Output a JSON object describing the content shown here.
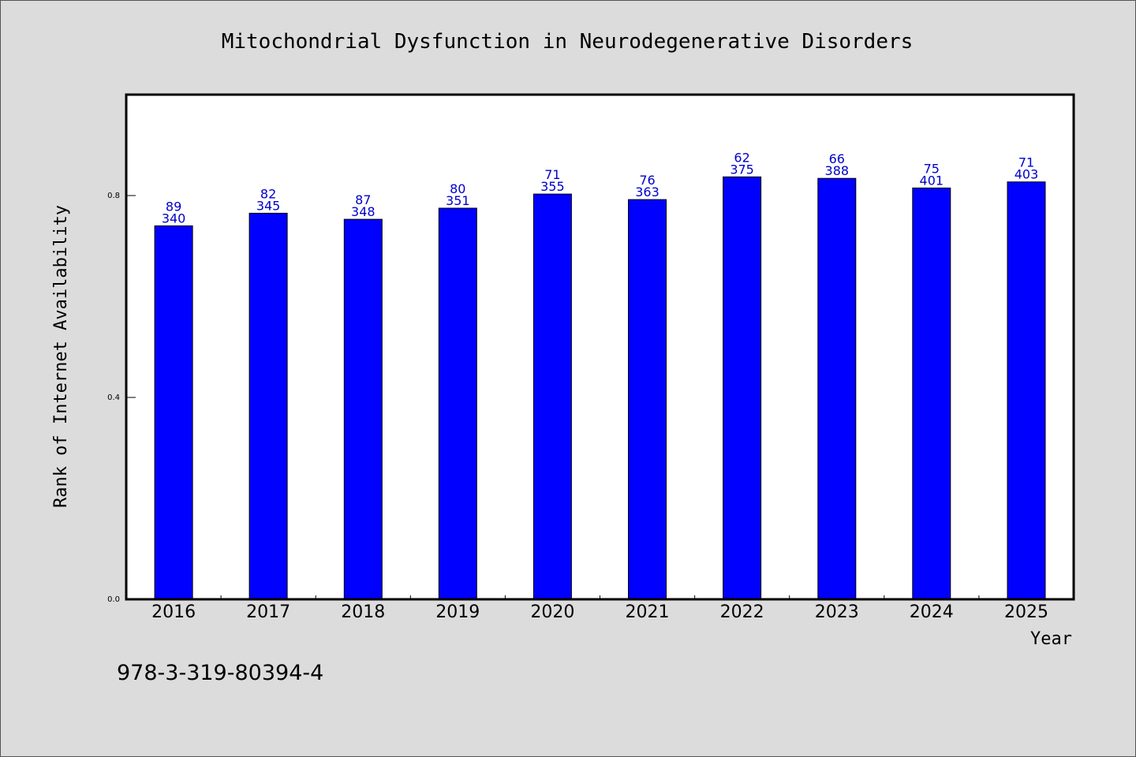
{
  "chart_data": {
    "type": "bar",
    "title": "Mitochondrial Dysfunction in Neurodegenerative Disorders",
    "xlabel": "Year",
    "ylabel": "Rank of Internet Availability",
    "categories": [
      "2016",
      "2017",
      "2018",
      "2019",
      "2020",
      "2021",
      "2022",
      "2023",
      "2024",
      "2025"
    ],
    "values": [
      0.74,
      0.765,
      0.753,
      0.775,
      0.803,
      0.792,
      0.837,
      0.834,
      0.815,
      0.827
    ],
    "label_top": [
      "89",
      "82",
      "87",
      "80",
      "71",
      "76",
      "62",
      "66",
      "75",
      "71"
    ],
    "label_bottom": [
      "340",
      "345",
      "348",
      "351",
      "355",
      "363",
      "375",
      "388",
      "401",
      "403"
    ],
    "ylim": [
      0,
      1.0
    ],
    "yticks": [
      0.0,
      0.4,
      0.8
    ],
    "ytick_labels": [
      "0.0",
      "0.4",
      "0.8"
    ],
    "grid": false,
    "bar_color": "#0000ff",
    "label_color": "#0000cc",
    "footnote": "978-3-319-80394-4"
  }
}
